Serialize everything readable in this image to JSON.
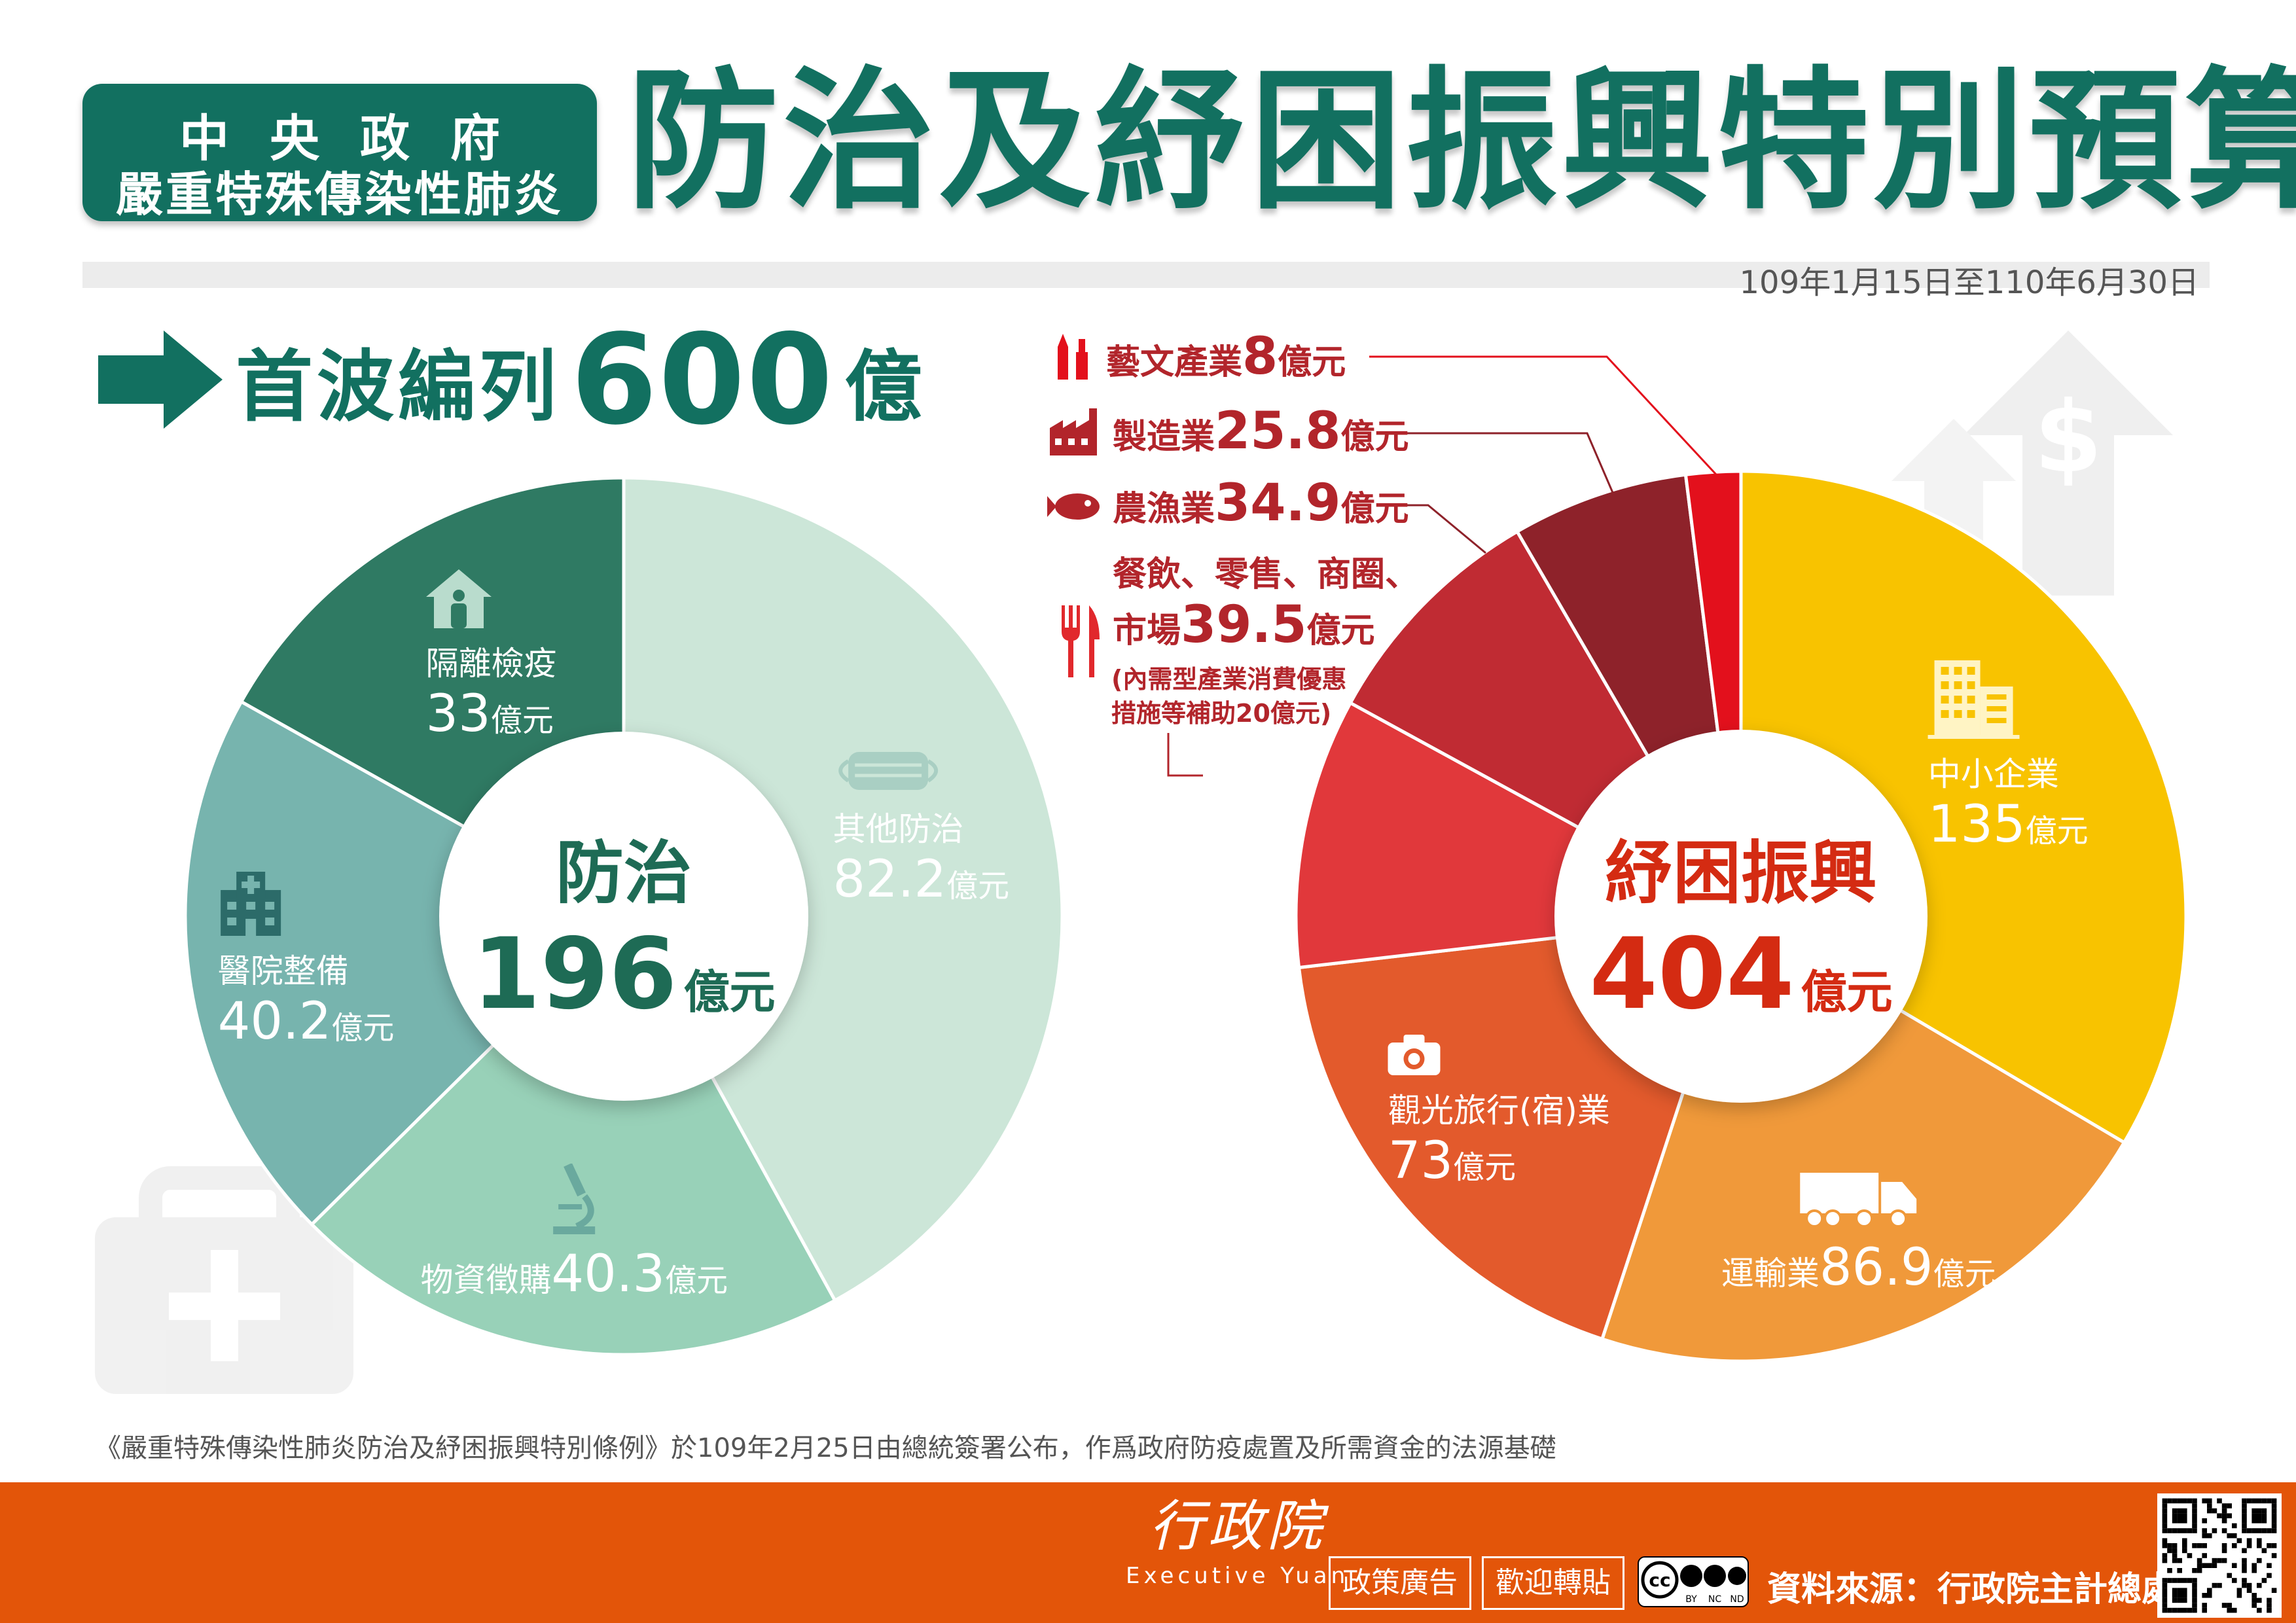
{
  "header": {
    "badge_line1": "中央政府",
    "badge_line2": "嚴重特殊傳染性肺炎",
    "title": "防治及紓困振興特別預算",
    "date_range": "109年1月15日至110年6月30日"
  },
  "first_wave": {
    "label": "首波編列",
    "amount": "600",
    "unit": "億"
  },
  "colors": {
    "prevention_dark": "#2f7a63",
    "prevention_mid": "#77b4ae",
    "prevention_soft": "#98d1b8",
    "prevention_light": "#cce6d8",
    "relief_yellow": "#f8c300",
    "relief_orange": "#f0993a",
    "relief_red": "#e1282c",
    "relief_darkred": "#8e222a",
    "accent_red": "#b2252b",
    "brand_green": "#127060",
    "footer_orange": "#e35509"
  },
  "chart_data": [
    {
      "type": "pie",
      "center_title": "防治",
      "center_value": "196",
      "center_unit": "億元",
      "labels": [
        "其他防治",
        "物資徵購",
        "醫院整備",
        "隔離檢疫"
      ],
      "values": [
        82.2,
        40.3,
        40.2,
        33
      ],
      "value_labels": [
        "82.2",
        "40.3",
        "40.2",
        "33"
      ],
      "unit": "億元",
      "icons": [
        "mask-icon",
        "microscope-icon",
        "hospital-icon",
        "quarantine-house-icon"
      ],
      "colors": [
        "#cce6d8",
        "#98d1b8",
        "#77b4ae",
        "#2f7a63"
      ]
    },
    {
      "type": "pie",
      "center_title": "紓困振興",
      "center_value": "404",
      "center_unit": "億元",
      "labels": [
        "中小企業",
        "運輸業",
        "觀光旅行(宿)業",
        "餐飲、零售、商圈、市場",
        "農漁業",
        "製造業",
        "藝文產業"
      ],
      "values": [
        135,
        86.9,
        73,
        39.5,
        34.9,
        25.8,
        8
      ],
      "value_labels": [
        "135",
        "86.9",
        "73",
        "39.5",
        "34.9",
        "25.8",
        "8"
      ],
      "unit": "億元",
      "icons": [
        "building-icon",
        "truck-icon",
        "camera-icon",
        "fork-knife-icon",
        "fish-icon",
        "factory-icon",
        "art-tools-icon"
      ],
      "colors": [
        "#f8c300",
        "#f0993a",
        "#e35a2c",
        "#e1383b",
        "#c02b33",
        "#8e222a",
        "#e3101c"
      ]
    }
  ],
  "annotations": {
    "arts": {
      "name": "藝文產業",
      "value": "8",
      "unit": "億元"
    },
    "manufacturing": {
      "name": "製造業",
      "value": "25.8",
      "unit": "億元"
    },
    "fishery": {
      "name": "農漁業",
      "value": "34.9",
      "unit": "億元"
    },
    "dining_line1": "餐飲、零售、商圈、",
    "dining_line2_name": "市場",
    "dining_value": "39.5",
    "dining_unit": "億元",
    "dining_note_line1": "(內需型產業消費優惠",
    "dining_note_line2": "措施等補助20億元)"
  },
  "footnote": "《嚴重特殊傳染性肺炎防治及紓困振興特別條例》於109年2月25日由總統簽署公布，作爲政府防疫處置及所需資金的法源基礎",
  "footer": {
    "org_cn": "行政院",
    "org_en": "Executive Yuan",
    "btn_policy": "政策廣告",
    "btn_share": "歡迎轉貼",
    "cc_label": "cc",
    "cc_terms": [
      "BY",
      "NC",
      "ND"
    ],
    "source": "資料來源：行政院主計總處"
  }
}
